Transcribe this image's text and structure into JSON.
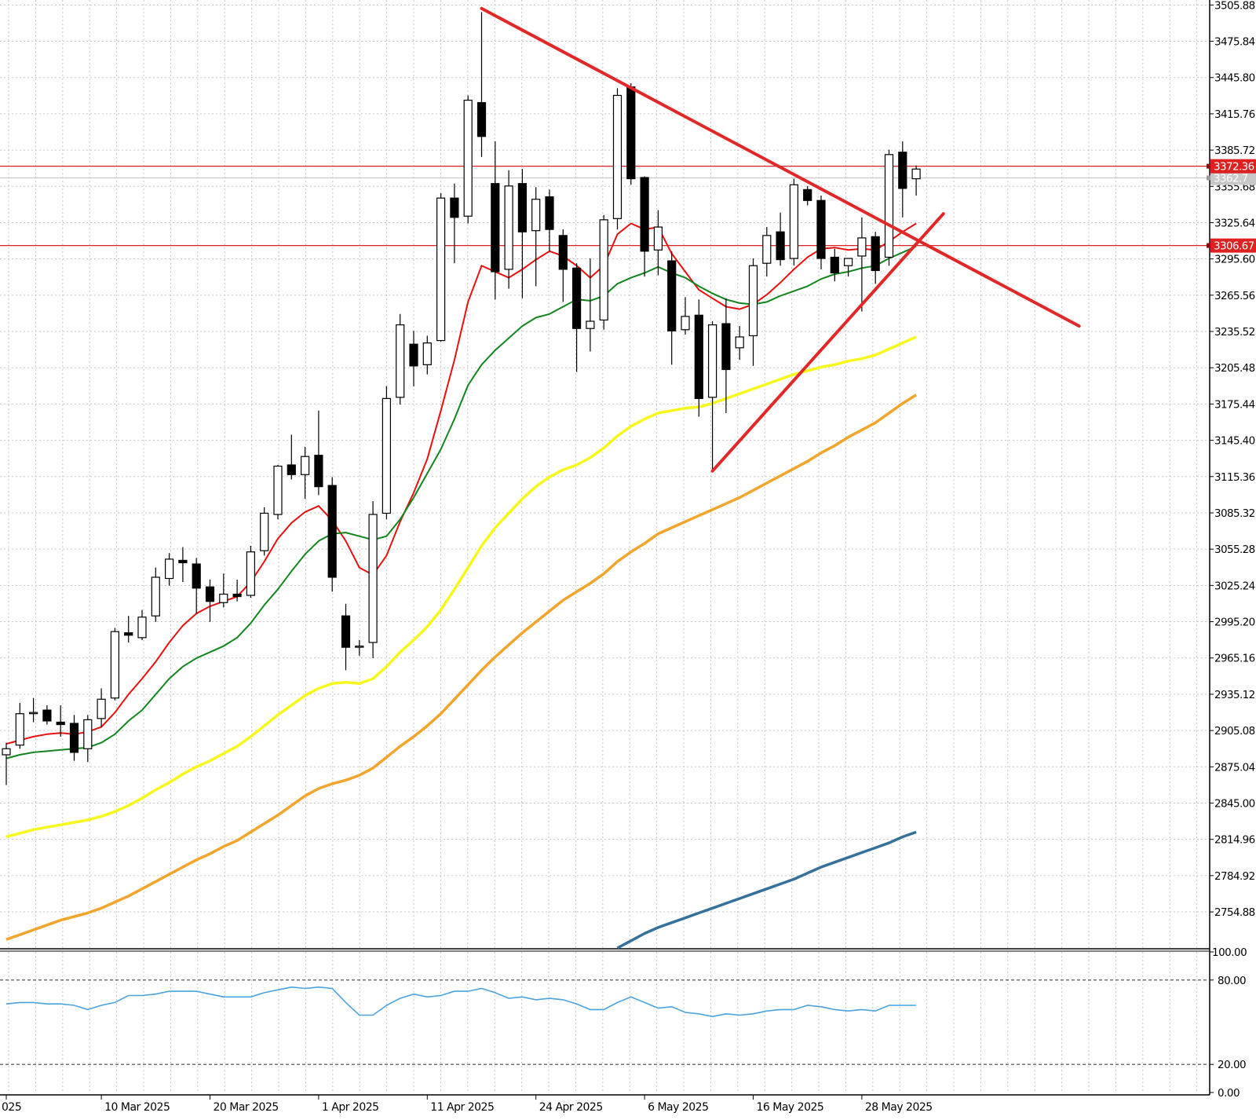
{
  "chart_data": [
    {
      "type": "candlestick",
      "title": "",
      "ylim": [
        2725,
        3510
      ],
      "y_ticks": [
        {
          "value": 3505.88,
          "label": "3505.88"
        },
        {
          "value": 3475.84,
          "label": "3475.84"
        },
        {
          "value": 3445.8,
          "label": "3445.80"
        },
        {
          "value": 3415.76,
          "label": "3415.76"
        },
        {
          "value": 3385.72,
          "label": "3385.72"
        },
        {
          "value": 3355.68,
          "label": "3355.68"
        },
        {
          "value": 3325.64,
          "label": "3325.64"
        },
        {
          "value": 3295.6,
          "label": "3295.60"
        },
        {
          "value": 3265.56,
          "label": "3265.56"
        },
        {
          "value": 3235.52,
          "label": "3235.52"
        },
        {
          "value": 3205.48,
          "label": "3205.48"
        },
        {
          "value": 3175.44,
          "label": "3175.44"
        },
        {
          "value": 3145.4,
          "label": "3145.40"
        },
        {
          "value": 3115.36,
          "label": "3115.36"
        },
        {
          "value": 3085.32,
          "label": "3085.32"
        },
        {
          "value": 3055.28,
          "label": "3055.28"
        },
        {
          "value": 3025.24,
          "label": "3025.24"
        },
        {
          "value": 2995.2,
          "label": "2995.20"
        },
        {
          "value": 2965.16,
          "label": "2965.16"
        },
        {
          "value": 2935.12,
          "label": "2935.12"
        },
        {
          "value": 2905.08,
          "label": "2905.08"
        },
        {
          "value": 2875.04,
          "label": "2875.04"
        },
        {
          "value": 2845.0,
          "label": "2845.00"
        },
        {
          "value": 2814.96,
          "label": "2814.96"
        },
        {
          "value": 2784.92,
          "label": "2784.92"
        },
        {
          "value": 2754.88,
          "label": "2754.88"
        }
      ],
      "x_ticks": [
        {
          "index": 0,
          "label": "025"
        },
        {
          "index": 7,
          "label": "10 Mar 2025"
        },
        {
          "index": 15,
          "label": "20 Mar 2025"
        },
        {
          "index": 23,
          "label": "1 Apr 2025"
        },
        {
          "index": 31,
          "label": "11 Apr 2025"
        },
        {
          "index": 39,
          "label": "24 Apr 2025"
        },
        {
          "index": 47,
          "label": "6 May 2025"
        },
        {
          "index": 55,
          "label": "16 May 2025"
        },
        {
          "index": 63,
          "label": "28 May 2025"
        }
      ],
      "candles": [
        {
          "o": 2885,
          "h": 2895,
          "l": 2860,
          "c": 2890
        },
        {
          "o": 2893,
          "h": 2928,
          "l": 2890,
          "c": 2919
        },
        {
          "o": 2920,
          "h": 2932,
          "l": 2912,
          "c": 2920
        },
        {
          "o": 2922,
          "h": 2926,
          "l": 2910,
          "c": 2913
        },
        {
          "o": 2912,
          "h": 2926,
          "l": 2900,
          "c": 2910
        },
        {
          "o": 2911,
          "h": 2918,
          "l": 2880,
          "c": 2887
        },
        {
          "o": 2890,
          "h": 2918,
          "l": 2879,
          "c": 2914
        },
        {
          "o": 2915,
          "h": 2940,
          "l": 2908,
          "c": 2931
        },
        {
          "o": 2932,
          "h": 2990,
          "l": 2930,
          "c": 2987
        },
        {
          "o": 2986,
          "h": 3000,
          "l": 2978,
          "c": 2984
        },
        {
          "o": 2982,
          "h": 3005,
          "l": 2980,
          "c": 2999
        },
        {
          "o": 3000,
          "h": 3040,
          "l": 2995,
          "c": 3032
        },
        {
          "o": 3031,
          "h": 3052,
          "l": 3025,
          "c": 3047
        },
        {
          "o": 3046,
          "h": 3057,
          "l": 3028,
          "c": 3044
        },
        {
          "o": 3043,
          "h": 3048,
          "l": 3002,
          "c": 3023
        },
        {
          "o": 3024,
          "h": 3030,
          "l": 2995,
          "c": 3012
        },
        {
          "o": 3011,
          "h": 3035,
          "l": 3007,
          "c": 3018
        },
        {
          "o": 3018,
          "h": 3030,
          "l": 3012,
          "c": 3016
        },
        {
          "o": 3017,
          "h": 3058,
          "l": 3015,
          "c": 3053
        },
        {
          "o": 3054,
          "h": 3090,
          "l": 3050,
          "c": 3085
        },
        {
          "o": 3084,
          "h": 3125,
          "l": 3080,
          "c": 3124
        },
        {
          "o": 3125,
          "h": 3150,
          "l": 3113,
          "c": 3117
        },
        {
          "o": 3117,
          "h": 3140,
          "l": 3097,
          "c": 3132
        },
        {
          "o": 3133,
          "h": 3170,
          "l": 3100,
          "c": 3107
        },
        {
          "o": 3108,
          "h": 3115,
          "l": 3020,
          "c": 3032
        },
        {
          "o": 3000,
          "h": 3010,
          "l": 2955,
          "c": 2974
        },
        {
          "o": 2975,
          "h": 2980,
          "l": 2967,
          "c": 2975
        },
        {
          "o": 2978,
          "h": 3095,
          "l": 2965,
          "c": 3084
        },
        {
          "o": 3085,
          "h": 3190,
          "l": 3080,
          "c": 3180
        },
        {
          "o": 3181,
          "h": 3250,
          "l": 3175,
          "c": 3241
        },
        {
          "o": 3225,
          "h": 3236,
          "l": 3190,
          "c": 3207
        },
        {
          "o": 3208,
          "h": 3232,
          "l": 3200,
          "c": 3226
        },
        {
          "o": 3228,
          "h": 3350,
          "l": 3227,
          "c": 3346
        },
        {
          "o": 3346,
          "h": 3358,
          "l": 3292,
          "c": 3330
        },
        {
          "o": 3331,
          "h": 3431,
          "l": 3325,
          "c": 3427
        },
        {
          "o": 3425,
          "h": 3500,
          "l": 3380,
          "c": 3397
        },
        {
          "o": 3358,
          "h": 3393,
          "l": 3262,
          "c": 3285
        },
        {
          "o": 3287,
          "h": 3369,
          "l": 3271,
          "c": 3356
        },
        {
          "o": 3358,
          "h": 3370,
          "l": 3263,
          "c": 3318
        },
        {
          "o": 3319,
          "h": 3355,
          "l": 3273,
          "c": 3345
        },
        {
          "o": 3347,
          "h": 3353,
          "l": 3302,
          "c": 3320
        },
        {
          "o": 3315,
          "h": 3320,
          "l": 3260,
          "c": 3287
        },
        {
          "o": 3288,
          "h": 3292,
          "l": 3202,
          "c": 3238
        },
        {
          "o": 3238,
          "h": 3296,
          "l": 3219,
          "c": 3244
        },
        {
          "o": 3245,
          "h": 3332,
          "l": 3237,
          "c": 3328
        },
        {
          "o": 3329,
          "h": 3437,
          "l": 3320,
          "c": 3431
        },
        {
          "o": 3438,
          "h": 3441,
          "l": 3357,
          "c": 3362
        },
        {
          "o": 3363,
          "h": 3364,
          "l": 3281,
          "c": 3302
        },
        {
          "o": 3303,
          "h": 3336,
          "l": 3282,
          "c": 3322
        },
        {
          "o": 3294,
          "h": 3302,
          "l": 3208,
          "c": 3236
        },
        {
          "o": 3237,
          "h": 3264,
          "l": 3233,
          "c": 3248
        },
        {
          "o": 3249,
          "h": 3262,
          "l": 3165,
          "c": 3180
        },
        {
          "o": 3181,
          "h": 3244,
          "l": 3120,
          "c": 3241
        },
        {
          "o": 3242,
          "h": 3263,
          "l": 3168,
          "c": 3204
        },
        {
          "o": 3222,
          "h": 3240,
          "l": 3212,
          "c": 3231
        },
        {
          "o": 3232,
          "h": 3296,
          "l": 3207,
          "c": 3290
        },
        {
          "o": 3292,
          "h": 3322,
          "l": 3281,
          "c": 3315
        },
        {
          "o": 3318,
          "h": 3334,
          "l": 3290,
          "c": 3295
        },
        {
          "o": 3296,
          "h": 3362,
          "l": 3290,
          "c": 3357
        },
        {
          "o": 3353,
          "h": 3356,
          "l": 3340,
          "c": 3344
        },
        {
          "o": 3344,
          "h": 3348,
          "l": 3287,
          "c": 3296
        },
        {
          "o": 3297,
          "h": 3304,
          "l": 3277,
          "c": 3284
        },
        {
          "o": 3290,
          "h": 3294,
          "l": 3281,
          "c": 3296
        },
        {
          "o": 3298,
          "h": 3330,
          "l": 3252,
          "c": 3313
        },
        {
          "o": 3314,
          "h": 3318,
          "l": 3275,
          "c": 3286
        },
        {
          "o": 3297,
          "h": 3386,
          "l": 3290,
          "c": 3382
        },
        {
          "o": 3384,
          "h": 3393,
          "l": 3330,
          "c": 3354
        },
        {
          "o": 3362,
          "h": 3373,
          "l": 3348,
          "c": 3370
        }
      ],
      "moving_averages": [
        {
          "color": "#e8110f",
          "values": [
            2894,
            2897,
            2900,
            2902,
            2903,
            2902,
            2904,
            2908,
            2920,
            2935,
            2948,
            2962,
            2978,
            2992,
            3002,
            3008,
            3012,
            3016,
            3028,
            3045,
            3064,
            3077,
            3086,
            3091,
            3079,
            3062,
            3040,
            3034,
            3050,
            3078,
            3102,
            3130,
            3170,
            3212,
            3260,
            3290,
            3285,
            3280,
            3287,
            3295,
            3302,
            3298,
            3290,
            3280,
            3290,
            3316,
            3325,
            3320,
            3322,
            3300,
            3285,
            3270,
            3263,
            3256,
            3254,
            3258,
            3266,
            3276,
            3287,
            3297,
            3304,
            3305,
            3303,
            3304,
            3303,
            3310,
            3318,
            3325
          ]
        },
        {
          "color": "#11861d",
          "values": [
            2882,
            2885,
            2887,
            2888,
            2889,
            2890,
            2891,
            2895,
            2902,
            2913,
            2922,
            2935,
            2948,
            2958,
            2965,
            2970,
            2975,
            2982,
            2994,
            3009,
            3022,
            3037,
            3051,
            3062,
            3068,
            3069,
            3066,
            3063,
            3066,
            3080,
            3098,
            3118,
            3138,
            3163,
            3191,
            3208,
            3220,
            3230,
            3240,
            3247,
            3250,
            3256,
            3262,
            3261,
            3265,
            3275,
            3280,
            3284,
            3289,
            3284,
            3280,
            3273,
            3267,
            3262,
            3259,
            3258,
            3260,
            3265,
            3269,
            3273,
            3279,
            3283,
            3285,
            3288,
            3290,
            3296,
            3301,
            3306
          ]
        },
        {
          "color": "#f6f71c",
          "values": [
            2817,
            2820,
            2823,
            2825,
            2827,
            2829,
            2831,
            2834,
            2838,
            2843,
            2849,
            2856,
            2862,
            2869,
            2875,
            2880,
            2886,
            2892,
            2900,
            2909,
            2918,
            2926,
            2934,
            2940,
            2944,
            2945,
            2944,
            2948,
            2958,
            2970,
            2980,
            2991,
            3005,
            3022,
            3040,
            3058,
            3073,
            3085,
            3097,
            3107,
            3115,
            3121,
            3125,
            3131,
            3139,
            3149,
            3157,
            3163,
            3168,
            3170,
            3172,
            3173,
            3176,
            3180,
            3184,
            3188,
            3192,
            3196,
            3200,
            3203,
            3206,
            3208,
            3211,
            3213,
            3216,
            3221,
            3226,
            3231
          ]
        },
        {
          "color": "#f2a52a",
          "values": [
            2732,
            2736,
            2740,
            2744,
            2748,
            2751,
            2754,
            2758,
            2763,
            2768,
            2774,
            2780,
            2786,
            2792,
            2798,
            2803,
            2809,
            2814,
            2821,
            2828,
            2835,
            2843,
            2851,
            2857,
            2861,
            2864,
            2868,
            2874,
            2883,
            2892,
            2900,
            2909,
            2919,
            2931,
            2943,
            2955,
            2966,
            2976,
            2986,
            2995,
            3004,
            3013,
            3020,
            3027,
            3035,
            3045,
            3053,
            3060,
            3068,
            3073,
            3078,
            3083,
            3088,
            3093,
            3098,
            3104,
            3110,
            3116,
            3122,
            3128,
            3135,
            3141,
            3148,
            3154,
            3160,
            3168,
            3176,
            3183
          ]
        },
        {
          "color": "#35719b",
          "start_index": 45,
          "values": [
            2725,
            2731,
            2737,
            2742,
            2746,
            2750,
            2754,
            2758,
            2762,
            2766,
            2770,
            2774,
            2778,
            2782,
            2787,
            2792,
            2796,
            2800,
            2804,
            2808,
            2812,
            2817,
            2821
          ]
        }
      ],
      "trendlines": [
        {
          "color": "#e22827",
          "from": [
            35,
            3503
          ],
          "to": [
            79,
            3240
          ]
        },
        {
          "color": "#e22827",
          "from": [
            52,
            3120
          ],
          "to": [
            69,
            3333
          ]
        }
      ],
      "horizontal_lines": [
        {
          "value": 3372.36,
          "label": "3372.36",
          "color": "#dd2121"
        },
        {
          "value": 3306.67,
          "label": "3306.67",
          "color": "#dd2121"
        },
        {
          "value": 3362.7,
          "label": "3362.7",
          "color": "#c8c8c8"
        }
      ]
    },
    {
      "type": "line",
      "title": "",
      "ylim": [
        0,
        100
      ],
      "y_ticks": [
        {
          "value": 100,
          "label": "100.00"
        },
        {
          "value": 80,
          "label": "80.00"
        },
        {
          "value": 20,
          "label": "20.00"
        },
        {
          "value": 0,
          "label": "0.00"
        }
      ],
      "levels": [
        80,
        20
      ],
      "series": [
        {
          "color": "#4aa3df",
          "values": [
            63,
            64,
            64,
            63,
            63,
            62,
            59,
            62,
            64,
            69,
            69,
            70,
            72,
            72,
            72,
            70,
            68,
            68,
            68,
            71,
            73,
            75,
            74,
            75,
            74,
            64,
            55,
            55,
            62,
            67,
            70,
            68,
            69,
            72,
            72,
            74,
            71,
            67,
            68,
            66,
            67,
            66,
            63,
            59,
            59,
            64,
            68,
            64,
            60,
            61,
            57,
            56,
            54,
            56,
            55,
            56,
            58,
            59,
            59,
            62,
            61,
            59,
            58,
            59,
            58,
            62,
            62,
            62
          ]
        }
      ]
    }
  ]
}
